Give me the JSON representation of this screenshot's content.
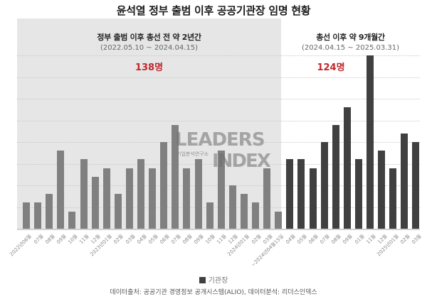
{
  "title": "윤석열 정부 출범 이후 공공기관장 임명 현황",
  "periods": [
    {
      "heading": "정부 출범 이후 총선 전 약 2년간",
      "range": "(2022.05.10 ~ 2024.04.15)",
      "total": "138명"
    },
    {
      "heading": "총선 이후 약 9개월간",
      "range": "(2024.04.15 ~ 2025.03.31)",
      "total": "124명"
    }
  ],
  "watermark": {
    "line1": "LEADERS",
    "line2": "INDEX",
    "sub": "기업분석연구소"
  },
  "legend": {
    "label": "기관장",
    "color": "#404040"
  },
  "footer": "데이터출처: 공공기관 경영정보 공개시스템(ALIO), 데이터분석: 리더스인덱스",
  "colors": {
    "pre_bar": "#808080",
    "post_bar": "#404040",
    "total_text": "#c0272d",
    "shade": "#e6e6e6"
  },
  "chart_data": {
    "type": "bar",
    "title": "윤석열 정부 출범 이후 공공기관장 임명 현황",
    "xlabel": "",
    "ylabel": "",
    "ylim": [
      0,
      20
    ],
    "grid": true,
    "grid_step": 2.5,
    "legend": [
      "기관장"
    ],
    "legend_position": "bottom",
    "categories": [
      "2022년06월",
      "07월",
      "08월",
      "09월",
      "10월",
      "11월",
      "12월",
      "2023년01월",
      "02월",
      "03월",
      "04월",
      "05월",
      "06월",
      "07월",
      "08월",
      "09월",
      "10월",
      "11월",
      "12월",
      "2024년01월",
      "02월",
      "03월",
      "~2024년04월15일",
      "04월",
      "05월",
      "06월",
      "07월",
      "08월",
      "09월",
      "01월",
      "11월",
      "12월",
      "2025년01월",
      "02월",
      "03월"
    ],
    "series": [
      {
        "name": "기관장",
        "values": [
          3,
          3,
          4,
          9,
          2,
          8,
          6,
          7,
          4,
          7,
          8,
          7,
          10,
          12,
          7,
          8,
          3,
          9,
          5,
          4,
          3,
          7,
          2,
          8,
          8,
          7,
          10,
          12,
          14,
          8,
          20,
          9,
          7,
          11,
          10
        ]
      }
    ],
    "segments": [
      {
        "label": "정부 출범 이후 총선 전 약 2년간",
        "range": "2022.05.10 ~ 2024.04.15",
        "start_index": 0,
        "end_index": 22,
        "total": 138
      },
      {
        "label": "총선 이후 약 9개월간",
        "range": "2024.04.15 ~ 2025.03.31",
        "start_index": 23,
        "end_index": 34,
        "total": 124
      }
    ]
  }
}
